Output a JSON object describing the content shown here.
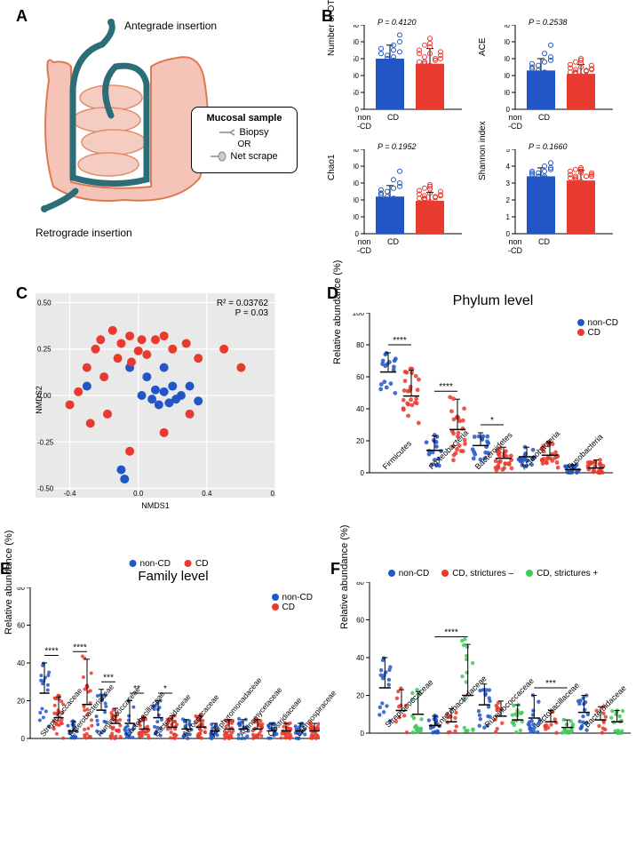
{
  "colors": {
    "nonCD": "#2256c7",
    "CD": "#e83a2e",
    "green": "#3fc956",
    "intestine_fill": "#f4c4b8",
    "intestine_stroke": "#e07850",
    "scope": "#2b6e78",
    "grid_bg": "#e9e9e9",
    "grid_line": "#ffffff"
  },
  "panelA": {
    "antegrade": "Antegrade insertion",
    "retrograde": "Retrograde insertion",
    "box_title": "Mucosal sample",
    "biopsy": "Biopsy",
    "or": "OR",
    "netscrape": "Net scrape"
  },
  "panelB": {
    "plots": [
      {
        "ylabel": "Number of OTUs",
        "pval": "P = 0.4120",
        "ymax": 250,
        "ytick": 50,
        "nonCD_mean": 150,
        "nonCD_sd": 40,
        "CD_mean": 135,
        "CD_sd": 45,
        "points_nonCD": [
          130,
          160,
          145,
          200,
          180,
          110,
          155,
          170,
          140,
          120,
          190,
          135,
          165,
          150,
          175,
          220,
          95
        ],
        "points_CD": [
          120,
          140,
          165,
          150,
          110,
          175,
          190,
          130,
          145,
          160,
          105,
          155,
          210,
          125,
          170,
          140,
          135,
          185,
          115,
          150,
          165,
          140,
          195
        ]
      },
      {
        "ylabel": "ACE",
        "pval": "P = 0.2538",
        "ymax": 500,
        "ytick": 100,
        "nonCD_mean": 230,
        "nonCD_sd": 70,
        "CD_mean": 210,
        "CD_sd": 55,
        "points_nonCD": [
          200,
          260,
          210,
          310,
          270,
          180,
          220,
          290,
          240,
          170,
          330,
          200,
          250,
          230,
          280,
          380,
          160
        ],
        "points_CD": [
          190,
          220,
          250,
          230,
          175,
          265,
          280,
          200,
          225,
          240,
          170,
          235,
          300,
          200,
          260,
          220,
          210,
          275,
          180,
          235,
          245,
          215,
          290
        ]
      },
      {
        "ylabel": "Chao1",
        "pval": "P = 0.1952",
        "ymax": 500,
        "ytick": 100,
        "nonCD_mean": 220,
        "nonCD_sd": 65,
        "CD_mean": 195,
        "CD_sd": 50,
        "points_nonCD": [
          190,
          250,
          200,
          300,
          260,
          170,
          210,
          280,
          230,
          160,
          320,
          195,
          240,
          220,
          270,
          370,
          155
        ],
        "points_CD": [
          180,
          210,
          240,
          220,
          165,
          255,
          270,
          190,
          215,
          230,
          160,
          225,
          290,
          190,
          250,
          210,
          200,
          265,
          170,
          225,
          235,
          205,
          280
        ]
      },
      {
        "ylabel": "Shannon index",
        "pval": "P = 0.1660",
        "ymax": 5,
        "ytick": 1,
        "nonCD_mean": 3.4,
        "nonCD_sd": 0.5,
        "CD_mean": 3.15,
        "CD_sd": 0.6,
        "points_nonCD": [
          3.2,
          3.6,
          3.4,
          3.9,
          3.7,
          2.9,
          3.3,
          3.8,
          3.5,
          2.8,
          4.0,
          3.1,
          3.6,
          3.4,
          3.7,
          4.2,
          3.0
        ],
        "points_CD": [
          3.0,
          3.3,
          3.6,
          3.4,
          2.7,
          3.7,
          3.8,
          3.1,
          3.4,
          3.5,
          2.6,
          3.4,
          3.9,
          3.0,
          3.6,
          3.3,
          3.2,
          3.7,
          2.8,
          3.4,
          3.5,
          3.2,
          3.8
        ]
      }
    ],
    "xlabels": [
      "non\n-CD",
      "CD"
    ]
  },
  "panelC": {
    "r2": "R² = 0.03762",
    "pval": "P = 0.03",
    "xlabel": "NMDS1",
    "ylabel": "NMDS2",
    "xlim": [
      -0.6,
      0.8
    ],
    "ylim": [
      -0.55,
      0.55
    ],
    "xticks": [
      -0.4,
      0.0,
      0.4,
      0.8
    ],
    "yticks": [
      -0.5,
      -0.25,
      0.0,
      0.25,
      0.5
    ],
    "nonCD_points": [
      [
        -0.3,
        0.05
      ],
      [
        0.02,
        0.0
      ],
      [
        0.08,
        -0.02
      ],
      [
        0.1,
        0.03
      ],
      [
        0.12,
        -0.05
      ],
      [
        0.15,
        0.02
      ],
      [
        0.18,
        -0.04
      ],
      [
        0.2,
        0.05
      ],
      [
        0.22,
        -0.02
      ],
      [
        0.25,
        0.0
      ],
      [
        0.3,
        0.05
      ],
      [
        0.35,
        -0.03
      ],
      [
        0.05,
        0.1
      ],
      [
        -0.1,
        -0.4
      ],
      [
        -0.08,
        -0.45
      ],
      [
        -0.05,
        0.15
      ],
      [
        0.15,
        0.15
      ]
    ],
    "CD_points": [
      [
        -0.4,
        -0.05
      ],
      [
        -0.35,
        0.02
      ],
      [
        -0.3,
        0.15
      ],
      [
        -0.25,
        0.25
      ],
      [
        -0.22,
        0.3
      ],
      [
        -0.2,
        0.1
      ],
      [
        -0.15,
        0.35
      ],
      [
        -0.12,
        0.2
      ],
      [
        -0.1,
        0.28
      ],
      [
        -0.05,
        0.32
      ],
      [
        -0.04,
        0.18
      ],
      [
        0.0,
        0.24
      ],
      [
        0.02,
        0.3
      ],
      [
        0.05,
        0.22
      ],
      [
        0.1,
        0.3
      ],
      [
        0.15,
        0.32
      ],
      [
        0.2,
        0.25
      ],
      [
        0.28,
        0.28
      ],
      [
        0.35,
        0.2
      ],
      [
        0.5,
        0.25
      ],
      [
        0.6,
        0.15
      ],
      [
        -0.05,
        -0.3
      ],
      [
        0.15,
        -0.2
      ],
      [
        -0.18,
        -0.1
      ],
      [
        0.3,
        -0.1
      ],
      [
        -0.28,
        -0.15
      ]
    ],
    "legend": [
      "non-CD",
      "CD"
    ]
  },
  "panelD": {
    "title": "Phylum level",
    "ylabel": "Relative abundance (%)",
    "ymax": 100,
    "ytick": 20,
    "categories": [
      "Firmicutes",
      "Proteobacteria",
      "Bacteroidetes",
      "Actinobacteria",
      "Fusobacteria"
    ],
    "sig": [
      "****",
      "****",
      "*",
      "",
      ""
    ],
    "nonCD": {
      "means": [
        63,
        14,
        17,
        10,
        2
      ],
      "sds": [
        12,
        9,
        8,
        6,
        3
      ]
    },
    "CD": {
      "means": [
        48,
        27,
        9,
        11,
        3
      ],
      "sds": [
        16,
        19,
        7,
        8,
        5
      ]
    },
    "legend": [
      "non-CD",
      "CD"
    ]
  },
  "panelE": {
    "title": "Family level",
    "ylabel": "Relative abundance (%)",
    "ymax": 80,
    "ytick": 20,
    "categories": [
      "Streptococcaceae",
      "Enterobacteriaceae",
      "Ruminococcaceae",
      "Lactobacillaceae",
      "Bacteroidaceae",
      "Aerococcaceae",
      "Porphyromonadaceae",
      "Actinomycetaceae",
      "Clostridiaceae",
      "Lachnospiraceae"
    ],
    "sig": [
      "****",
      "****",
      "***",
      "**",
      "*",
      "",
      "",
      "",
      "",
      ""
    ],
    "nonCD": {
      "means": [
        24,
        4,
        15,
        8,
        11,
        5,
        4,
        5,
        4,
        4
      ],
      "sds": [
        16,
        5,
        11,
        12,
        9,
        5,
        4,
        5,
        4,
        4
      ]
    },
    "CD": {
      "means": [
        11,
        18,
        8,
        5,
        6,
        6,
        5,
        5,
        4,
        4
      ],
      "sds": [
        11,
        24,
        8,
        6,
        6,
        6,
        5,
        5,
        4,
        4
      ]
    },
    "legend": [
      "non-CD",
      "CD"
    ]
  },
  "panelF": {
    "ylabel": "Relative abundance (%)",
    "ymax": 80,
    "ytick": 20,
    "categories": [
      "Streptococcaceae",
      "Enterobacteriaceae",
      "Ruminococcaceae",
      "Lactobacillaceae",
      "Bacteroidaceae"
    ],
    "sig": [
      "",
      "****",
      "",
      "***",
      ""
    ],
    "nonCD": {
      "means": [
        24,
        4,
        15,
        8,
        11
      ],
      "sds": [
        16,
        5,
        11,
        12,
        9
      ]
    },
    "CDneg": {
      "means": [
        12,
        6,
        9,
        6,
        7
      ],
      "sds": [
        11,
        7,
        8,
        6,
        7
      ]
    },
    "CDpos": {
      "means": [
        10,
        20,
        7,
        3,
        6
      ],
      "sds": [
        12,
        27,
        8,
        4,
        6
      ]
    },
    "legend": [
      "non-CD",
      "CD, strictures –",
      "CD, strictures +"
    ]
  }
}
